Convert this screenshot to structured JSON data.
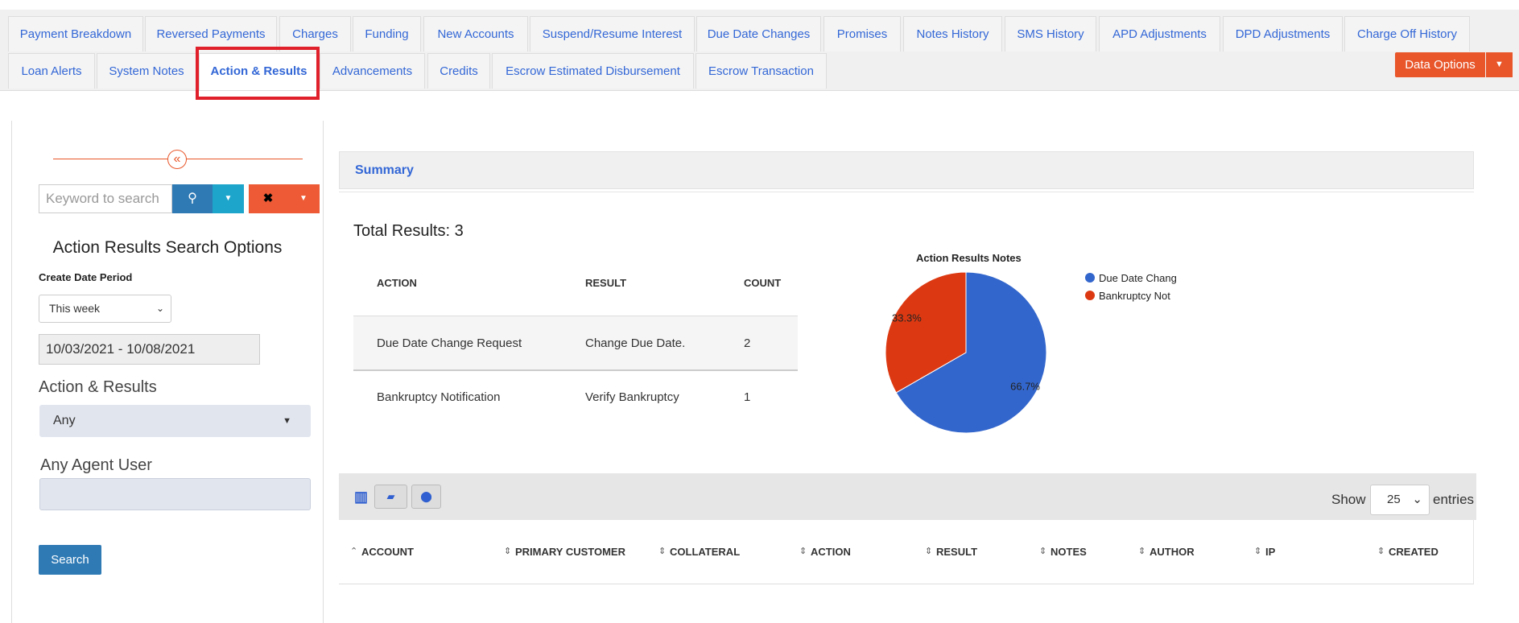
{
  "tabs": {
    "row1": [
      "Payment Breakdown",
      "Reversed Payments",
      "Charges",
      "Funding",
      "New Accounts",
      "Suspend/Resume Interest",
      "Due Date Changes",
      "Promises",
      "Notes History",
      "SMS History",
      "APD Adjustments",
      "DPD Adjustments",
      "Charge Off History"
    ],
    "row2": [
      "Loan Alerts",
      "System Notes",
      "Action & Results",
      "Advancements",
      "Credits",
      "Escrow Estimated Disbursement",
      "Escrow Transaction"
    ],
    "active": "Action & Results",
    "data_options": "Data Options"
  },
  "sidebar": {
    "search_placeholder": "Keyword to search",
    "title": "Action Results Search Options",
    "create_date_label": "Create Date Period",
    "period": "This week",
    "date_range": "10/03/2021 - 10/08/2021",
    "action_results_label": "Action & Results",
    "action_results_value": "Any",
    "agent_label": "Any Agent User",
    "search_button": "Search"
  },
  "summary": {
    "title": "Summary",
    "total": "Total Results: 3",
    "table": {
      "headers": [
        "ACTION",
        "RESULT",
        "COUNT"
      ],
      "rows": [
        [
          "Due Date Change Request",
          "Change Due Date.",
          "2"
        ],
        [
          "Bankruptcy Notification",
          "Verify Bankruptcy",
          "1"
        ]
      ]
    }
  },
  "chart_data": {
    "type": "pie",
    "title": "Action Results Notes",
    "slices": [
      {
        "name": "Due Date Chang",
        "value": 66.7,
        "label": "66.7%",
        "color": "#3366cc"
      },
      {
        "name": "Bankruptcy Not",
        "value": 33.3,
        "label": "33.3%",
        "color": "#dc3912"
      }
    ]
  },
  "grid": {
    "show": "Show",
    "entries_value": "25",
    "entries": "entries",
    "columns": [
      "ACCOUNT",
      "PRIMARY CUSTOMER",
      "COLLATERAL",
      "ACTION",
      "RESULT",
      "NOTES",
      "AUTHOR",
      "IP",
      "CREATED"
    ]
  }
}
